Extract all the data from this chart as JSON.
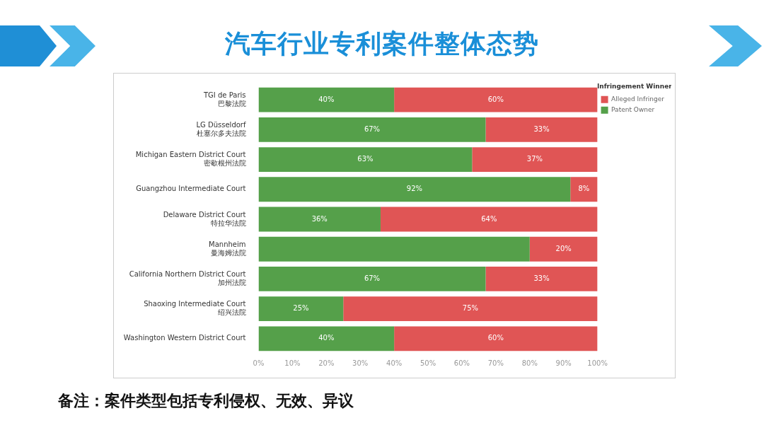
{
  "chart_data": {
    "type": "bar",
    "orientation": "horizontal",
    "stacked": true,
    "title": "汽车行业专利案件整体态势",
    "legend_title": "Infringement Winner",
    "legend": "top right",
    "grid": false,
    "categories": [
      "TGI de Paris\n巴黎法院",
      "LG Düsseldorf\n杜塞尔多夫法院",
      "Michigan Eastern District Court\n密歇根州法院",
      "Guangzhou Intermediate Court",
      "Delaware District Court\n特拉华法院",
      "Mannheim\n曼海姆法院",
      "California Northern District Court\n加州法院",
      "Shaoxing Intermediate Court\n绍兴法院",
      "Washington Western District Court"
    ],
    "series": [
      {
        "name": "Patent Owner",
        "color": "#55a04a",
        "values": [
          40,
          67,
          63,
          92,
          36,
          80,
          67,
          25,
          40
        ],
        "value_labels": [
          "40%",
          "67%",
          "63%",
          "92%",
          "36%",
          null,
          "67%",
          "25%",
          "40%"
        ]
      },
      {
        "name": "Alleged Infringer",
        "color": "#e05555",
        "values": [
          60,
          33,
          37,
          8,
          64,
          20,
          33,
          75,
          60
        ],
        "value_labels": [
          "60%",
          "33%",
          "37%",
          "8%",
          "64%",
          "20%",
          "33%",
          "75%",
          "60%"
        ]
      }
    ],
    "xlim": [
      0,
      100
    ],
    "xticks": [
      {
        "value": 0,
        "label": "0%"
      },
      {
        "value": 10,
        "label": "10%"
      },
      {
        "value": 20,
        "label": "20%"
      },
      {
        "value": 30,
        "label": "30%"
      },
      {
        "value": 40,
        "label": "40%"
      },
      {
        "value": 50,
        "label": "50%"
      },
      {
        "value": 60,
        "label": "60%"
      },
      {
        "value": 70,
        "label": "70%"
      },
      {
        "value": 80,
        "label": "80%"
      },
      {
        "value": 90,
        "label": "90%"
      },
      {
        "value": 100,
        "label": "100%"
      }
    ],
    "annotations": [
      "备注：案件类型包括专利侵权、无效、异议"
    ]
  }
}
